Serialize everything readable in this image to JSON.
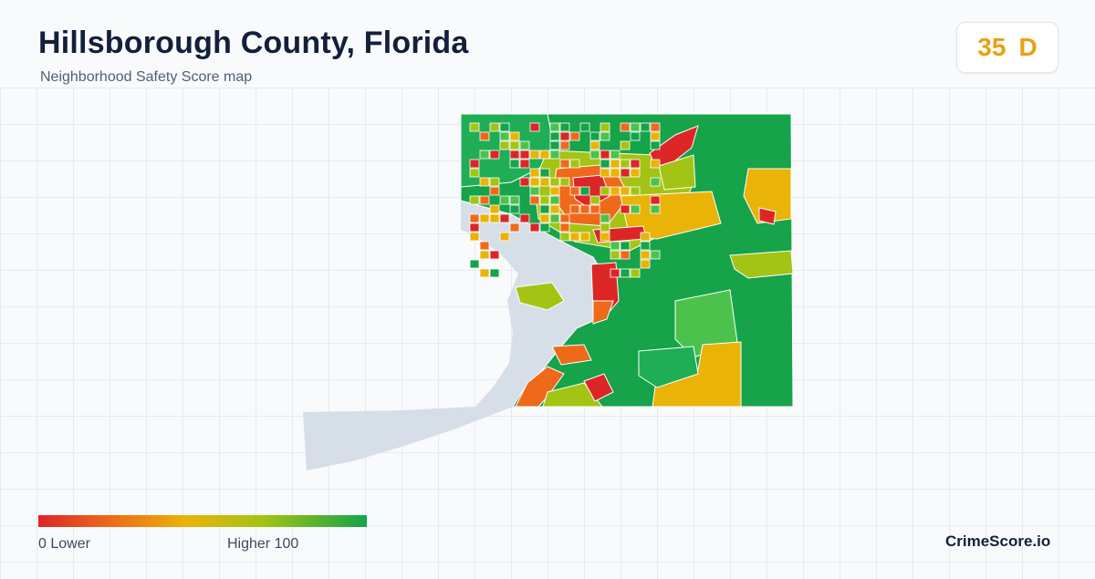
{
  "header": {
    "title": "Hillsborough County, Florida",
    "subtitle": "Neighborhood Safety Score map"
  },
  "score": {
    "value": "35",
    "grade": "D",
    "color": "#eaa012"
  },
  "legend": {
    "low_label": "0  Lower",
    "high_label": "Higher  100",
    "colors": [
      "#dc2626",
      "#ee6a1a",
      "#eab308",
      "#a3c414",
      "#16a34a"
    ]
  },
  "brand": "CrimeScore.io",
  "map": {
    "water_color": "#d6dee7",
    "boundary_color": "#ffffff"
  }
}
